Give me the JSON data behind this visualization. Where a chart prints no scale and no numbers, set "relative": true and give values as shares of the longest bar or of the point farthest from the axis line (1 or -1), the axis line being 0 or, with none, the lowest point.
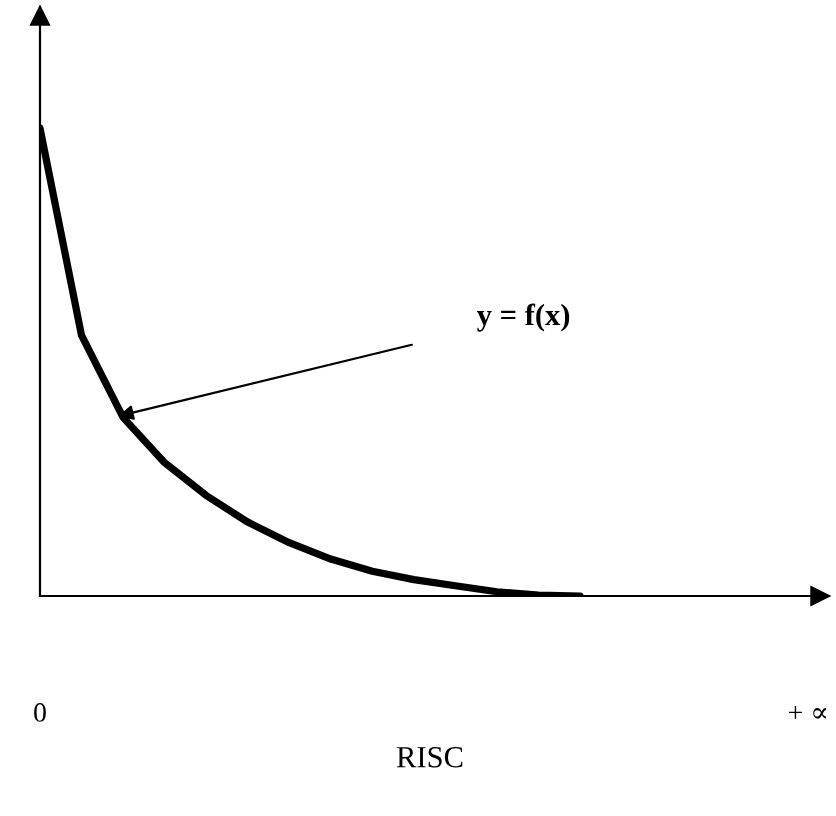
{
  "chart_data": {
    "type": "line",
    "relative": true,
    "xlabel": "RISC",
    "categories": [
      null,
      null,
      null,
      null,
      null,
      null,
      null,
      null,
      null,
      null,
      null,
      null,
      null,
      null
    ],
    "series": [
      {
        "color": "#000000",
        "values": [
          1,
          0.557,
          0.382,
          0.285,
          0.215,
          0.158,
          0.114,
          0.079,
          0.053,
          0.035,
          0.022,
          0.009,
          0.002,
          0
        ]
      }
    ],
    "annotations": [
      "0",
      "+ ∝",
      "y = f(x)"
    ],
    "legend": false,
    "marker": "none",
    "line_style": "solid"
  }
}
